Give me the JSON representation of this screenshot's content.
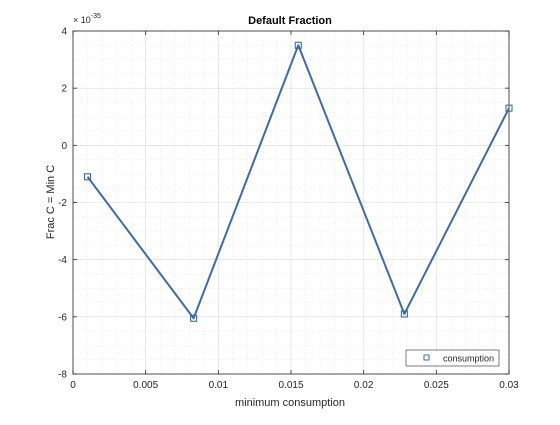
{
  "chart_data": {
    "type": "line",
    "title": "Default Fraction",
    "xlabel": "minimum consumption",
    "ylabel": "Frac C = Min C",
    "y_exponent_label": "10",
    "y_exponent_power": "-35",
    "xlim": [
      0,
      0.03
    ],
    "ylim": [
      -8,
      4
    ],
    "x_ticks": [
      0,
      0.005,
      0.01,
      0.015,
      0.02,
      0.025,
      0.03
    ],
    "x_tick_labels": [
      "0",
      "0.005",
      "0.01",
      "0.015",
      "0.02",
      "0.025",
      "0.03"
    ],
    "y_ticks": [
      -8,
      -6,
      -4,
      -2,
      0,
      2,
      4
    ],
    "y_tick_labels": [
      "-8",
      "-6",
      "-4",
      "-2",
      "0",
      "2",
      "4"
    ],
    "grid": true,
    "minor_grid": true,
    "legend_position": "bottom-right",
    "series": [
      {
        "name": "consumption",
        "color": "#3b6bb0",
        "marker": "square",
        "x": [
          0.001,
          0.0083,
          0.0155,
          0.0228,
          0.03
        ],
        "y": [
          -1.1,
          -6.05,
          3.5,
          -5.9,
          1.3
        ]
      }
    ]
  }
}
